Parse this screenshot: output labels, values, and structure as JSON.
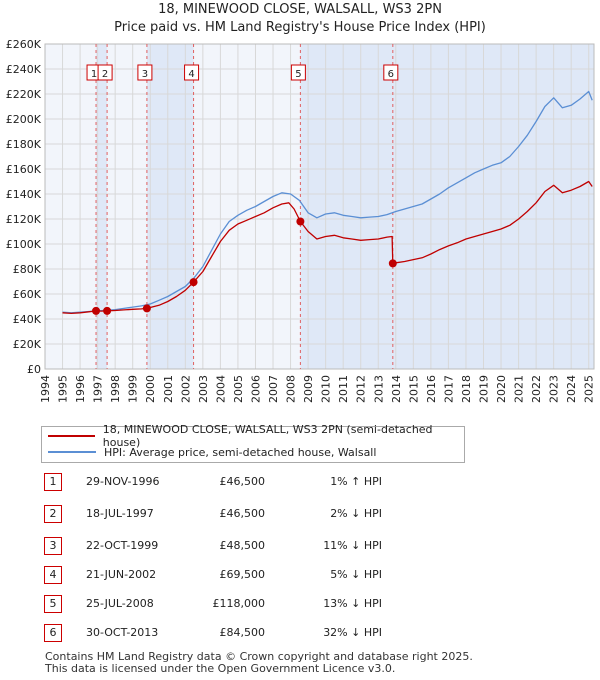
{
  "header": {
    "title": "18, MINEWOOD CLOSE, WALSALL, WS3 2PN",
    "subtitle": "Price paid vs. HM Land Registry's House Price Index (HPI)"
  },
  "chart_data": {
    "type": "line",
    "xlim": [
      1994,
      2025.3
    ],
    "ylim": [
      0,
      260000
    ],
    "x_ticks": [
      1994,
      1995,
      1996,
      1997,
      1998,
      1999,
      2000,
      2001,
      2002,
      2003,
      2004,
      2005,
      2006,
      2007,
      2008,
      2009,
      2010,
      2011,
      2012,
      2013,
      2014,
      2015,
      2016,
      2017,
      2018,
      2019,
      2020,
      2021,
      2022,
      2023,
      2024,
      2025
    ],
    "y_ticks": [
      {
        "value": 0,
        "label": "£0"
      },
      {
        "value": 20000,
        "label": "£20K"
      },
      {
        "value": 40000,
        "label": "£40K"
      },
      {
        "value": 60000,
        "label": "£60K"
      },
      {
        "value": 80000,
        "label": "£80K"
      },
      {
        "value": 100000,
        "label": "£100K"
      },
      {
        "value": 120000,
        "label": "£120K"
      },
      {
        "value": 140000,
        "label": "£140K"
      },
      {
        "value": 160000,
        "label": "£160K"
      },
      {
        "value": 180000,
        "label": "£180K"
      },
      {
        "value": 200000,
        "label": "£200K"
      },
      {
        "value": 220000,
        "label": "£220K"
      },
      {
        "value": 240000,
        "label": "£240K"
      },
      {
        "value": 260000,
        "label": "£260K"
      }
    ],
    "series": [
      {
        "name": "HPI: Average price, semi-detached house, Walsall",
        "color": "#5b8fd4",
        "points": [
          [
            1995.0,
            45500
          ],
          [
            1995.5,
            45000
          ],
          [
            1996.0,
            45500
          ],
          [
            1996.5,
            46000
          ],
          [
            1997.0,
            46500
          ],
          [
            1997.5,
            47000
          ],
          [
            1998.0,
            47500
          ],
          [
            1998.5,
            48500
          ],
          [
            1999.0,
            49500
          ],
          [
            1999.5,
            50500
          ],
          [
            2000.0,
            52000
          ],
          [
            2000.5,
            55000
          ],
          [
            2001.0,
            58000
          ],
          [
            2001.5,
            62000
          ],
          [
            2002.0,
            66000
          ],
          [
            2002.5,
            73000
          ],
          [
            2003.0,
            82000
          ],
          [
            2003.5,
            95000
          ],
          [
            2004.0,
            108000
          ],
          [
            2004.5,
            118000
          ],
          [
            2005.0,
            123000
          ],
          [
            2005.5,
            127000
          ],
          [
            2006.0,
            130000
          ],
          [
            2006.5,
            134000
          ],
          [
            2007.0,
            138000
          ],
          [
            2007.5,
            141000
          ],
          [
            2008.0,
            140000
          ],
          [
            2008.5,
            135000
          ],
          [
            2009.0,
            125000
          ],
          [
            2009.5,
            121000
          ],
          [
            2010.0,
            124000
          ],
          [
            2010.5,
            125000
          ],
          [
            2011.0,
            123000
          ],
          [
            2011.5,
            122000
          ],
          [
            2012.0,
            121000
          ],
          [
            2012.5,
            121500
          ],
          [
            2013.0,
            122000
          ],
          [
            2013.5,
            123500
          ],
          [
            2014.0,
            126000
          ],
          [
            2014.5,
            128000
          ],
          [
            2015.0,
            130000
          ],
          [
            2015.5,
            132000
          ],
          [
            2016.0,
            136000
          ],
          [
            2016.5,
            140000
          ],
          [
            2017.0,
            145000
          ],
          [
            2017.5,
            149000
          ],
          [
            2018.0,
            153000
          ],
          [
            2018.5,
            157000
          ],
          [
            2019.0,
            160000
          ],
          [
            2019.5,
            163000
          ],
          [
            2020.0,
            165000
          ],
          [
            2020.5,
            170000
          ],
          [
            2021.0,
            178000
          ],
          [
            2021.5,
            187000
          ],
          [
            2022.0,
            198000
          ],
          [
            2022.5,
            210000
          ],
          [
            2023.0,
            217000
          ],
          [
            2023.5,
            209000
          ],
          [
            2024.0,
            211000
          ],
          [
            2024.5,
            216000
          ],
          [
            2025.0,
            222000
          ],
          [
            2025.2,
            215000
          ]
        ]
      },
      {
        "name": "18, MINEWOOD CLOSE, WALSALL, WS3 2PN (semi-detached house)",
        "color": "#c00000",
        "points": [
          [
            1995.0,
            45000
          ],
          [
            1995.5,
            44500
          ],
          [
            1996.0,
            45000
          ],
          [
            1996.5,
            45800
          ],
          [
            1996.91,
            46500
          ],
          [
            1997.2,
            46300
          ],
          [
            1997.54,
            46500
          ],
          [
            1998.0,
            46800
          ],
          [
            1998.5,
            47300
          ],
          [
            1999.0,
            47800
          ],
          [
            1999.5,
            48100
          ],
          [
            1999.81,
            48500
          ],
          [
            2000.0,
            49200
          ],
          [
            2000.5,
            51000
          ],
          [
            2001.0,
            54000
          ],
          [
            2001.5,
            58000
          ],
          [
            2002.0,
            63000
          ],
          [
            2002.47,
            69500
          ],
          [
            2003.0,
            78000
          ],
          [
            2003.5,
            90000
          ],
          [
            2004.0,
            102000
          ],
          [
            2004.5,
            111000
          ],
          [
            2005.0,
            116000
          ],
          [
            2005.5,
            119000
          ],
          [
            2006.0,
            122000
          ],
          [
            2006.5,
            125000
          ],
          [
            2007.0,
            129000
          ],
          [
            2007.5,
            132000
          ],
          [
            2007.9,
            133000
          ],
          [
            2008.2,
            128000
          ],
          [
            2008.56,
            118000
          ],
          [
            2009.0,
            110000
          ],
          [
            2009.5,
            104000
          ],
          [
            2010.0,
            106000
          ],
          [
            2010.5,
            107000
          ],
          [
            2011.0,
            105000
          ],
          [
            2011.5,
            104000
          ],
          [
            2012.0,
            103000
          ],
          [
            2012.5,
            103500
          ],
          [
            2013.0,
            104000
          ],
          [
            2013.5,
            105500
          ],
          [
            2013.79,
            106000
          ],
          [
            2013.83,
            84500
          ],
          [
            2014.0,
            85000
          ],
          [
            2014.5,
            86000
          ],
          [
            2015.0,
            87500
          ],
          [
            2015.5,
            89000
          ],
          [
            2016.0,
            92000
          ],
          [
            2016.5,
            95500
          ],
          [
            2017.0,
            98500
          ],
          [
            2017.5,
            101000
          ],
          [
            2018.0,
            104000
          ],
          [
            2018.5,
            106000
          ],
          [
            2019.0,
            108000
          ],
          [
            2019.5,
            110000
          ],
          [
            2020.0,
            112000
          ],
          [
            2020.5,
            115000
          ],
          [
            2021.0,
            120000
          ],
          [
            2021.5,
            126000
          ],
          [
            2022.0,
            133000
          ],
          [
            2022.5,
            142000
          ],
          [
            2023.0,
            147000
          ],
          [
            2023.5,
            141000
          ],
          [
            2024.0,
            143000
          ],
          [
            2024.5,
            146000
          ],
          [
            2025.0,
            150000
          ],
          [
            2025.2,
            146000
          ]
        ]
      }
    ],
    "sales": [
      {
        "label": "1",
        "x": 1996.91,
        "y": 46500
      },
      {
        "label": "2",
        "x": 1997.54,
        "y": 46500
      },
      {
        "label": "3",
        "x": 1999.81,
        "y": 48500
      },
      {
        "label": "4",
        "x": 2002.47,
        "y": 69500
      },
      {
        "label": "5",
        "x": 2008.56,
        "y": 118000
      },
      {
        "label": "6",
        "x": 2013.83,
        "y": 84500
      }
    ],
    "colors": {
      "property": "#c00000",
      "hpi": "#5b8fd4",
      "shade": "#dfe8f7",
      "grid": "#d8d8d8",
      "plot_bg": "#f2f5fb",
      "marker_line": "#e06060"
    }
  },
  "legend": {
    "items": [
      {
        "label": "18, MINEWOOD CLOSE, WALSALL, WS3 2PN (semi-detached house)",
        "color": "#c00000"
      },
      {
        "label": "HPI: Average price, semi-detached house, Walsall",
        "color": "#5b8fd4"
      }
    ]
  },
  "sales_table": [
    {
      "num": "1",
      "date": "29-NOV-1996",
      "price": "£46,500",
      "hpi": "1% ↑ HPI"
    },
    {
      "num": "2",
      "date": "18-JUL-1997",
      "price": "£46,500",
      "hpi": "2% ↓ HPI"
    },
    {
      "num": "3",
      "date": "22-OCT-1999",
      "price": "£48,500",
      "hpi": "11% ↓ HPI"
    },
    {
      "num": "4",
      "date": "21-JUN-2002",
      "price": "£69,500",
      "hpi": "5% ↓ HPI"
    },
    {
      "num": "5",
      "date": "25-JUL-2008",
      "price": "£118,000",
      "hpi": "13% ↓ HPI"
    },
    {
      "num": "6",
      "date": "30-OCT-2013",
      "price": "£84,500",
      "hpi": "32% ↓ HPI"
    }
  ],
  "footer": {
    "line1": "Contains HM Land Registry data © Crown copyright and database right 2025.",
    "line2": "This data is licensed under the Open Government Licence v3.0."
  }
}
